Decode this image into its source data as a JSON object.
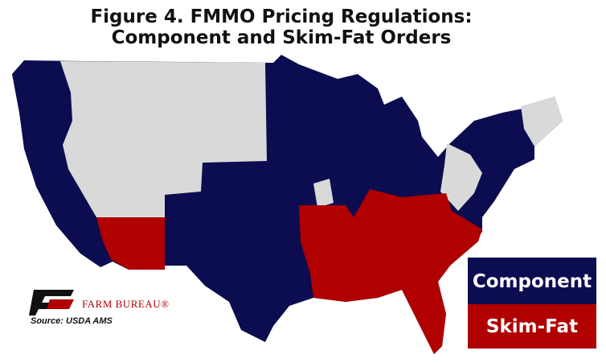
{
  "title": [
    "Figure 4. FMMO Pricing Regulations:",
    "Component and Skim-Fat Orders"
  ],
  "legend": [
    {
      "name": "Component",
      "color": "#0c0c50"
    },
    {
      "name": "Skim-Fat",
      "color": "#b00000"
    }
  ],
  "logo": {
    "text": "FARM BUREAU®"
  },
  "source": "Source: USDA AMS"
}
